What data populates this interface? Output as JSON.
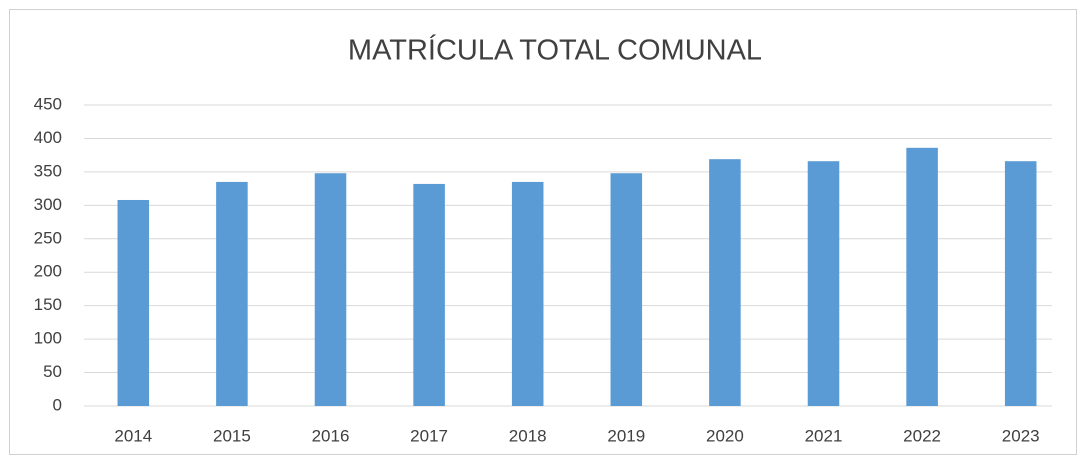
{
  "chart_data": {
    "type": "bar",
    "title": "MATRÍCULA TOTAL COMUNAL",
    "categories": [
      "2014",
      "2015",
      "2016",
      "2017",
      "2018",
      "2019",
      "2020",
      "2021",
      "2022",
      "2023"
    ],
    "values": [
      308,
      335,
      348,
      332,
      335,
      348,
      369,
      366,
      386,
      366
    ],
    "color": "#5b9bd5",
    "ylim": [
      0,
      450
    ],
    "yticks": [
      0,
      50,
      100,
      150,
      200,
      250,
      300,
      350,
      400,
      450
    ],
    "grid": true
  }
}
